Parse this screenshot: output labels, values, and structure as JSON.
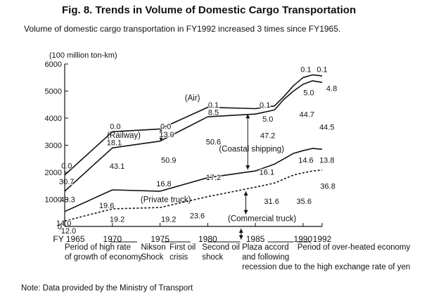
{
  "title": "Fig. 8. Trends in Volume of Domestic Cargo Transportation",
  "subtitle": "Volume of domestic cargo transportation in FY1992 increased 3 times since FY1965.",
  "note": "Note:  Data provided by the Ministry of Transport",
  "chart_data": {
    "type": "area",
    "unit_label": "(100 million ton-km)",
    "ylim": [
      0,
      6000
    ],
    "yticks": [
      0,
      1000,
      2000,
      3000,
      4000,
      5000,
      6000
    ],
    "ytick_labels": [
      "0",
      "1000",
      "2000",
      "3000",
      "4000",
      "5000",
      "6000"
    ],
    "xlim": [
      1965,
      1992
    ],
    "xticks": [
      1965,
      1970,
      1975,
      1980,
      1985,
      1990,
      1992
    ],
    "xtick_labels": [
      "FY 1965",
      "1970",
      "1975",
      "1980",
      "1985",
      "1990",
      "1992"
    ],
    "x": [
      1965,
      1970,
      1975,
      1980,
      1985,
      1987,
      1988,
      1989,
      1990,
      1991,
      1992
    ],
    "boundaries": [
      {
        "key": "commercial_top",
        "style": "dashed",
        "values": [
          200,
          650,
          700,
          1100,
          1450,
          1600,
          1750,
          1900,
          1980,
          2050,
          2080
        ]
      },
      {
        "key": "private_top",
        "style": "solid",
        "values": [
          550,
          1350,
          1300,
          1800,
          2050,
          2300,
          2500,
          2700,
          2800,
          2880,
          2850
        ]
      },
      {
        "key": "coastal_top",
        "style": "solid",
        "values": [
          1300,
          2900,
          3150,
          4050,
          4150,
          4300,
          4700,
          5000,
          5250,
          5380,
          5320
        ]
      },
      {
        "key": "railway_top",
        "style": "solid",
        "values": [
          1900,
          3500,
          3600,
          4400,
          4350,
          4450,
          4800,
          5200,
          5500,
          5600,
          5560
        ]
      }
    ],
    "series_labels": [
      {
        "text": "(Air)",
        "x": 1978.4,
        "y": 4750
      },
      {
        "text": "(Railway)",
        "x": 1971.2,
        "y": 3380
      },
      {
        "text": "(Coastal shipping)",
        "x": 1984.6,
        "y": 2870
      },
      {
        "text": "(Private truck)",
        "x": 1975.6,
        "y": 1000
      },
      {
        "text": "(Commercial truck)",
        "x": 1985.7,
        "y": 300
      }
    ],
    "share_labels": [
      {
        "text": "0.0",
        "x": 1965.2,
        "y": 2250
      },
      {
        "text": "30.7",
        "x": 1965.2,
        "y": 1660
      },
      {
        "text": "43.3",
        "x": 1965.3,
        "y": 1000
      },
      {
        "text": "14.0",
        "x": 1964.9,
        "y": 130
      },
      {
        "text": "12.0",
        "x": 1965.4,
        "y": -150
      },
      {
        "text": "0.0",
        "x": 1970.3,
        "y": 3700
      },
      {
        "text": "18.1",
        "x": 1970.2,
        "y": 3100
      },
      {
        "text": "43.1",
        "x": 1970.5,
        "y": 2240
      },
      {
        "text": "19.6",
        "x": 1969.4,
        "y": 780
      },
      {
        "text": "19.2",
        "x": 1970.5,
        "y": 270
      },
      {
        "text": "0.0",
        "x": 1975.6,
        "y": 3700
      },
      {
        "text": "13.0",
        "x": 1975.7,
        "y": 3400
      },
      {
        "text": "50.9",
        "x": 1975.9,
        "y": 2460
      },
      {
        "text": "16.8",
        "x": 1975.4,
        "y": 1580
      },
      {
        "text": "19.2",
        "x": 1975.9,
        "y": 270
      },
      {
        "text": "0.1",
        "x": 1980.6,
        "y": 4500
      },
      {
        "text": "8.5",
        "x": 1980.6,
        "y": 4220
      },
      {
        "text": "50.6",
        "x": 1980.6,
        "y": 3130
      },
      {
        "text": "17.2",
        "x": 1980.6,
        "y": 1820
      },
      {
        "text": "23.6",
        "x": 1978.9,
        "y": 400
      },
      {
        "text": "0.1",
        "x": 1986.0,
        "y": 4500
      },
      {
        "text": "5.0",
        "x": 1986.3,
        "y": 3970
      },
      {
        "text": "47.2",
        "x": 1986.3,
        "y": 3360
      },
      {
        "text": "16.1",
        "x": 1986.2,
        "y": 2010
      },
      {
        "text": "31.6",
        "x": 1986.7,
        "y": 940
      },
      {
        "text": "0.1",
        "x": 1990.3,
        "y": 5800
      },
      {
        "text": "0.1",
        "x": 1992.0,
        "y": 5800
      },
      {
        "text": "4.8",
        "x": 1993.0,
        "y": 5110
      },
      {
        "text": "5.0",
        "x": 1990.6,
        "y": 4950
      },
      {
        "text": "44.7",
        "x": 1990.4,
        "y": 4140
      },
      {
        "text": "44.5",
        "x": 1992.5,
        "y": 3680
      },
      {
        "text": "14.6",
        "x": 1990.3,
        "y": 2460
      },
      {
        "text": "13.8",
        "x": 1992.5,
        "y": 2460
      },
      {
        "text": "36.8",
        "x": 1992.6,
        "y": 1500
      },
      {
        "text": "35.6",
        "x": 1990.1,
        "y": 940
      }
    ],
    "arrows": [
      {
        "x": 1975.1,
        "y_from": 3150,
        "y_to": 3600
      },
      {
        "x": 1984.2,
        "y_from": 2100,
        "y_to": 4150
      },
      {
        "x": 1984.0,
        "y_from": 1300,
        "y_to": 450
      },
      {
        "x": 1983.5,
        "y_from": -80,
        "y_to": -480
      }
    ],
    "periods": [
      {
        "lines": [
          "Period of high rate",
          "of growth of economy"
        ],
        "x": 1965.0,
        "underline": [
          1969.8,
          1972.6
        ]
      },
      {
        "lines": [
          "Nikson",
          "Shock"
        ],
        "x": 1973.0,
        "underline": null
      },
      {
        "lines": [
          "First oil",
          "crisis"
        ],
        "x": 1976.0,
        "underline": [
          1975.2,
          1978.2
        ]
      },
      {
        "lines": [
          "Second oil",
          "shock"
        ],
        "x": 1979.4,
        "underline": [
          1980.0,
          1983.4
        ]
      },
      {
        "lines": [
          "Plaza accord",
          "and following",
          "recession due to the high exchange rate of yen"
        ],
        "x": 1983.6,
        "underline": [
          1986.3,
          1989.0
        ]
      },
      {
        "lines": [
          "Period of over-heated economy"
        ],
        "x": 1989.4,
        "underline": [
          1989.4,
          1990.8
        ]
      }
    ]
  }
}
